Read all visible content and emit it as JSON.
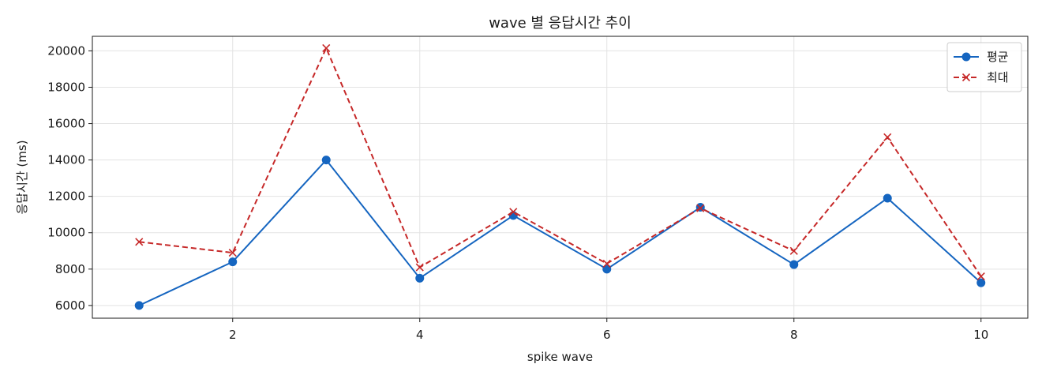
{
  "chart_data": {
    "type": "line",
    "title": "wave 별 응답시간 추이",
    "xlabel": "spike wave",
    "ylabel": "응답시간 (ms)",
    "x": [
      1,
      2,
      3,
      4,
      5,
      6,
      7,
      8,
      9,
      10
    ],
    "xlim": [
      0.5,
      10.5
    ],
    "ylim": [
      5300,
      20800
    ],
    "xticks": [
      2,
      4,
      6,
      8,
      10
    ],
    "yticks": [
      6000,
      8000,
      10000,
      12000,
      14000,
      16000,
      18000,
      20000
    ],
    "grid": true,
    "legend_position": "top-right",
    "series": [
      {
        "name": "평균",
        "color": "#1565c0",
        "marker": "circle",
        "line_style": "solid",
        "values": [
          6000,
          8400,
          14000,
          7500,
          10950,
          8000,
          11400,
          8250,
          11900,
          7250
        ]
      },
      {
        "name": "최대",
        "color": "#c62828",
        "marker": "x",
        "line_style": "dashed",
        "values": [
          9500,
          8900,
          20150,
          8100,
          11150,
          8300,
          11350,
          9000,
          15250,
          7600
        ]
      }
    ]
  }
}
